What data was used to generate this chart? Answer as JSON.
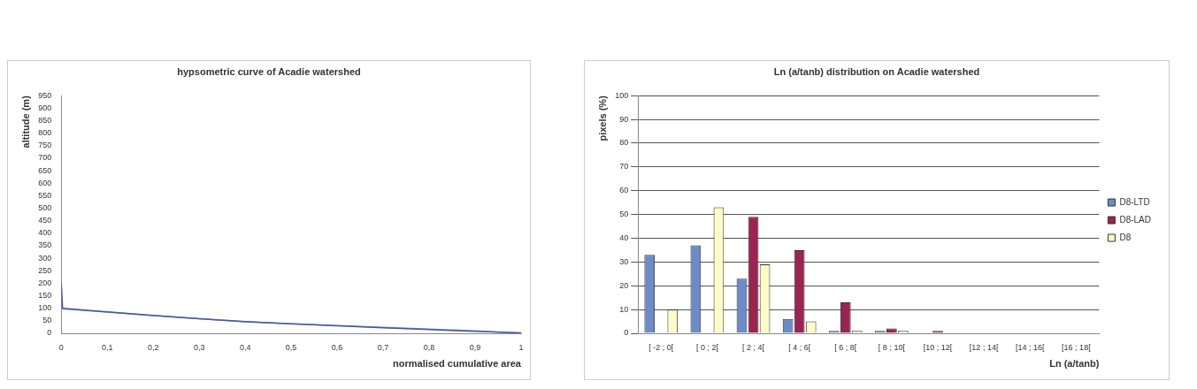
{
  "chart_data": [
    {
      "type": "line",
      "title": "hypsometric curve of Acadie watershed",
      "xlabel": "normalised cumulative area",
      "ylabel": "altitude (m)",
      "grid": false,
      "legend": false,
      "marker": "none",
      "line_style": "solid",
      "series": [
        {
          "color": "#5b4f9e",
          "x": [
            0,
            0.003,
            0.1,
            0.2,
            0.3,
            0.4,
            0.5,
            0.6,
            0.7,
            0.8,
            0.9,
            1
          ],
          "values": [
            200,
            100,
            86,
            72,
            58,
            47,
            38,
            30,
            22,
            15,
            8,
            2
          ]
        },
        {
          "color": "#3fb8b0",
          "x": [
            0,
            0.1,
            0.2,
            0.3,
            0.4,
            0.5,
            0.6,
            0.7,
            0.8,
            0.9,
            1
          ],
          "values": [
            98,
            85,
            71,
            58,
            46,
            38,
            31,
            24,
            17,
            10,
            0
          ]
        }
      ],
      "xlim": [
        0,
        1
      ],
      "xticks": [
        0,
        {
          "value": 0.1,
          "label": "0,1"
        },
        {
          "value": 0.2,
          "label": "0,2"
        },
        {
          "value": 0.3,
          "label": "0,3"
        },
        {
          "value": 0.4,
          "label": "0,4"
        },
        {
          "value": 0.5,
          "label": "0,5"
        },
        {
          "value": 0.6,
          "label": "0,6"
        },
        {
          "value": 0.7,
          "label": "0,7"
        },
        {
          "value": 0.8,
          "label": "0,8"
        },
        {
          "value": 0.9,
          "label": "0,9"
        },
        1
      ],
      "ylim": [
        0,
        950
      ],
      "yticks": [
        0,
        50,
        100,
        150,
        200,
        250,
        300,
        350,
        400,
        450,
        500,
        550,
        600,
        650,
        700,
        750,
        800,
        850,
        900,
        950
      ]
    },
    {
      "type": "bar",
      "title": "Ln (a/tanb) distribution on Acadie watershed",
      "xlabel": "Ln (a/tanb)",
      "ylabel": "pixels (%)",
      "grid": "y",
      "legend": "right",
      "categories": [
        "[ -2 ; 0[",
        "[ 0 ; 2[",
        "[ 2 ; 4[",
        "[ 4 ; 6[",
        "[ 6 ; 8[",
        "[ 8 ; 10[",
        "[10 ; 12[",
        "[12 ; 14[",
        "[14 ; 16[",
        "[16 ; 18["
      ],
      "series": [
        {
          "name": "D8-LTD",
          "color": "#6b8cc7",
          "values": [
            33,
            37,
            23,
            6,
            1,
            1,
            0,
            0,
            0,
            0
          ]
        },
        {
          "name": "D8-LAD",
          "color": "#9c2452",
          "values": [
            0,
            0,
            49,
            35,
            13,
            2,
            1,
            0,
            0,
            0
          ]
        },
        {
          "name": "D8",
          "color": "#fdfbc8",
          "values": [
            10,
            53,
            29,
            5,
            1,
            1,
            0,
            0,
            0,
            0
          ]
        }
      ],
      "ylim": [
        0,
        100
      ],
      "yticks": [
        0,
        10,
        20,
        30,
        40,
        50,
        60,
        70,
        80,
        90,
        100
      ]
    }
  ]
}
